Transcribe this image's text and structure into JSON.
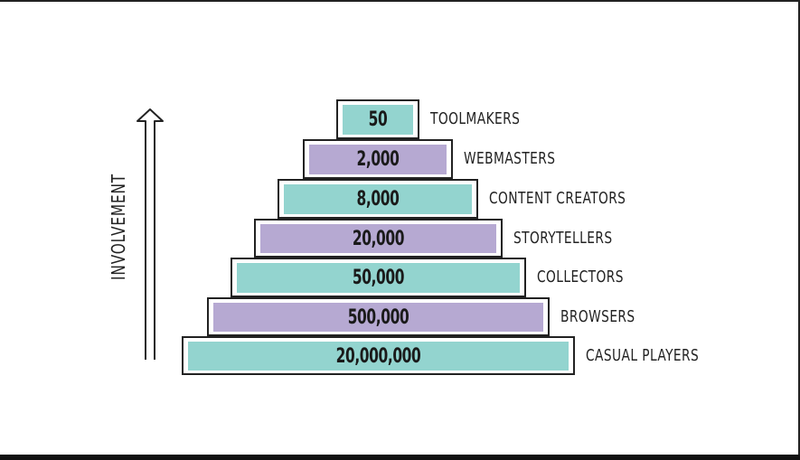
{
  "colors": {
    "teal": "#93d4cf",
    "purple": "#b6a9d2",
    "outline": "#222222"
  },
  "axis_label": "INVOLVEMENT",
  "tiers": [
    {
      "value": "50",
      "label": "TOOLMAKERS",
      "color": "teal"
    },
    {
      "value": "2,000",
      "label": "WEBMASTERS",
      "color": "purple"
    },
    {
      "value": "8,000",
      "label": "CONTENT CREATORS",
      "color": "teal"
    },
    {
      "value": "20,000",
      "label": "STORYTELLERS",
      "color": "purple"
    },
    {
      "value": "50,000",
      "label": "COLLECTORS",
      "color": "teal"
    },
    {
      "value": "500,000",
      "label": "BROWSERS",
      "color": "purple"
    },
    {
      "value": "20,000,000",
      "label": "CASUAL PLAYERS",
      "color": "teal"
    }
  ]
}
